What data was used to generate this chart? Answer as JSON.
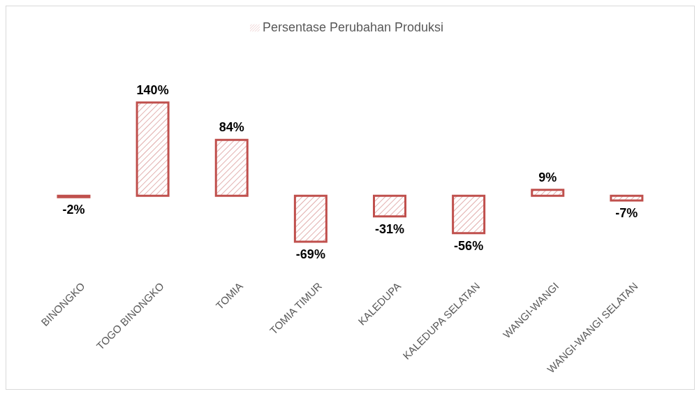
{
  "chart_data": {
    "type": "bar",
    "categories": [
      "BINONGKO",
      "TOGO BINONGKO",
      "TOMIA",
      "TOMIA TIMUR",
      "KALEDUPA",
      "KALEDUPA SELATAN",
      "WANGI-WANGI",
      "WANGI-WANGI SELATAN"
    ],
    "series": [
      {
        "name": "Persentase Perubahan Produksi",
        "color": "#c0504d",
        "values": [
          -2,
          140,
          84,
          -69,
          -31,
          -56,
          9,
          -7
        ],
        "value_labels": [
          "-2%",
          "140%",
          "84%",
          "-69%",
          "-31%",
          "-56%",
          "9%",
          "-7%"
        ]
      }
    ],
    "data_labels": true,
    "legend": "top",
    "grid": false
  }
}
